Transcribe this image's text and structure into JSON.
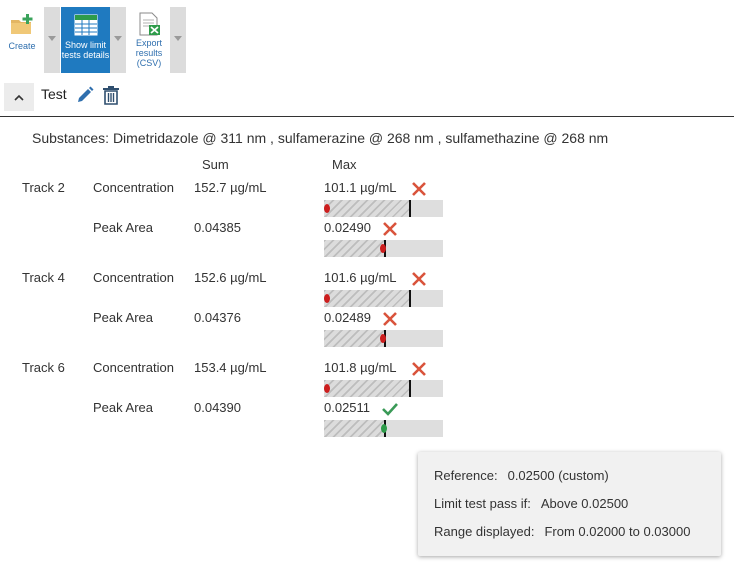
{
  "toolbar": {
    "create_label": "Create",
    "show_limit_label_1": "Show limit",
    "show_limit_label_2": "tests details",
    "export_label_1": "Export",
    "export_label_2": "results",
    "export_label_3": "(CSV)"
  },
  "section": {
    "title": "Test"
  },
  "substances": "Substances: Dimetridazole @ 311 nm , sulfamerazine @ 268 nm , sulfamethazine @ 268 nm",
  "columns": {
    "sum": "Sum",
    "max": "Max"
  },
  "tracks": [
    {
      "name": "Track 2",
      "rows": [
        {
          "metric": "Concentration",
          "sum": "152.7 µg/mL",
          "max": "101.1 µg/mL",
          "status": "fail",
          "level": 0.0
        },
        {
          "metric": "Peak Area",
          "sum": "0.04385",
          "max": "0.02490",
          "status": "fail",
          "level": 0.495
        }
      ]
    },
    {
      "name": "Track 4",
      "rows": [
        {
          "metric": "Concentration",
          "sum": "152.6 µg/mL",
          "max": "101.6 µg/mL",
          "status": "fail",
          "level": 0.0
        },
        {
          "metric": "Peak Area",
          "sum": "0.04376",
          "max": "0.02489",
          "status": "fail",
          "level": 0.4945
        }
      ]
    },
    {
      "name": "Track 6",
      "rows": [
        {
          "metric": "Concentration",
          "sum": "153.4 µg/mL",
          "max": "101.8 µg/mL",
          "status": "fail",
          "level": 0.0
        },
        {
          "metric": "Peak Area",
          "sum": "0.04390",
          "max": "0.02511",
          "status": "pass",
          "level": 0.5055
        }
      ]
    }
  ],
  "tooltip": {
    "reference_label": "Reference:",
    "reference_value": "0.02500 (custom)",
    "pass_label": "Limit test pass if:",
    "pass_value": "Above 0.02500",
    "range_label": "Range displayed:",
    "range_value": "From 0.02000 to 0.03000"
  },
  "colors": {
    "accent": "#1f7ac0",
    "fail": "#cc1f1f",
    "pass": "#2e9b4a",
    "icon_red": "#d9533b",
    "icon_green": "#3a9a57"
  },
  "icons": {
    "create": "folder-plus-icon",
    "show_limit": "table-icon",
    "export": "spreadsheet-export-icon",
    "collapse": "chevron-up-icon",
    "edit": "pencil-icon",
    "delete": "trash-icon",
    "fail": "cross-icon",
    "pass": "check-icon"
  }
}
